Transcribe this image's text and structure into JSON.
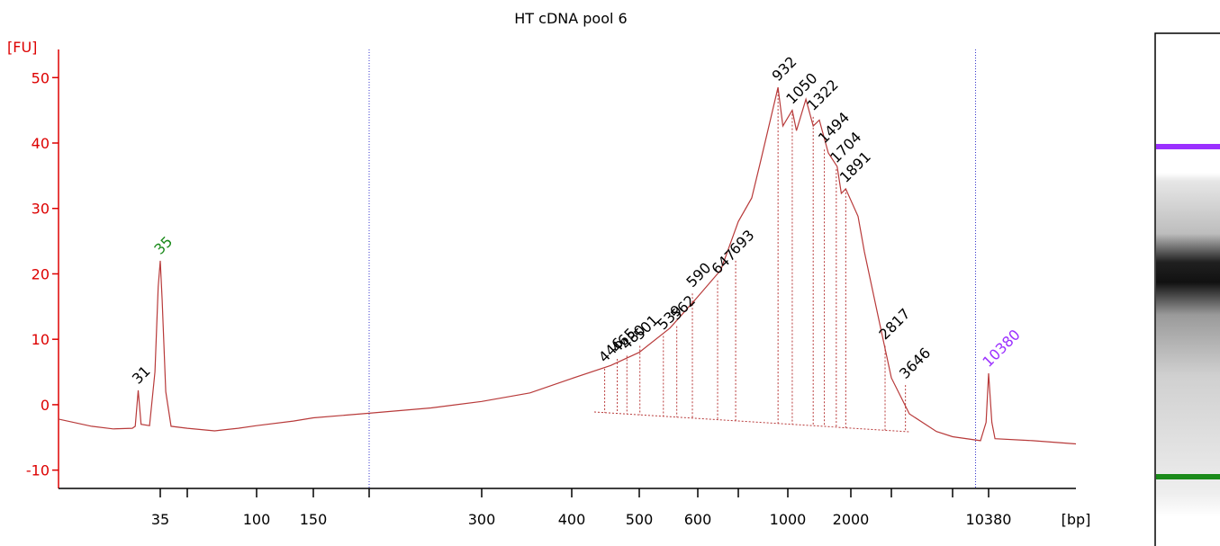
{
  "chart_data": {
    "type": "line",
    "title": "HT cDNA pool 6",
    "x_label": "[bp]",
    "y_label": "[FU]",
    "color": "#b83a3a",
    "axis_color": "#dd0000",
    "xlim": [
      20,
      17000
    ],
    "ylim": [
      -12.8,
      54.3
    ],
    "yticks": [
      -10,
      0,
      10,
      20,
      30,
      40,
      50
    ],
    "xticks": [
      35,
      {
        "value": 43,
        "label": null
      },
      100,
      150,
      {
        "value": 200,
        "label": null
      },
      300,
      400,
      500,
      600,
      {
        "value": 700,
        "label": null
      },
      1000,
      2000,
      {
        "value": 3000,
        "label": null
      },
      {
        "value": 7000,
        "label": null
      },
      10380
    ],
    "region_lines": [
      200,
      9000
    ],
    "x": [
      20,
      24,
      27,
      30,
      30.5,
      31,
      31.5,
      33,
      34,
      34.6,
      35,
      35.5,
      36.5,
      38,
      43,
      60,
      80,
      100,
      130,
      150,
      200,
      250,
      300,
      350,
      400,
      455,
      500,
      550,
      600,
      655,
      700,
      771,
      820,
      932,
      965,
      1050,
      1100,
      1220,
      1322,
      1414,
      1560,
      1720,
      1800,
      1891,
      2150,
      2290,
      2620,
      3000,
      3850,
      5600,
      7000,
      9500,
      10100,
      10380,
      10570,
      10760,
      13300,
      17000
    ],
    "y": [
      -2.2,
      -3.3,
      -3.7,
      -3.6,
      -3.3,
      2.2,
      -3.0,
      -3.2,
      5,
      18,
      22,
      16,
      2,
      -3.3,
      -3.6,
      -4.0,
      -3.6,
      -3.2,
      -2.5,
      -2.0,
      -1.3,
      -0.5,
      0.5,
      1.8,
      4.0,
      6.0,
      8.0,
      11.7,
      16.5,
      20.6,
      28.0,
      31.6,
      37.0,
      48.5,
      42.6,
      45.0,
      41.9,
      46.7,
      42.6,
      43.5,
      38.5,
      36.4,
      32.3,
      33.0,
      28.8,
      23.4,
      13.7,
      4.1,
      -1.4,
      -4.1,
      -4.9,
      -5.5,
      -2.7,
      4.8,
      -2.7,
      -5.2,
      -5.5,
      -6.0
    ],
    "peak_labels": [
      {
        "x": 31,
        "y": 2.2,
        "color": "#000000"
      },
      {
        "x": 35,
        "y": 22,
        "color": "#1a8a1a"
      },
      {
        "x": 446,
        "y": 5.5,
        "color": "#000000"
      },
      {
        "x": 465,
        "y": 7,
        "color": "#000000"
      },
      {
        "x": 480,
        "y": 7.5,
        "color": "#000000"
      },
      {
        "x": 501,
        "y": 9,
        "color": "#000000"
      },
      {
        "x": 539,
        "y": 10.5,
        "color": "#000000"
      },
      {
        "x": 562,
        "y": 12,
        "color": "#000000"
      },
      {
        "x": 590,
        "y": 17,
        "color": "#000000"
      },
      {
        "x": 647,
        "y": 19,
        "color": "#000000"
      },
      {
        "x": 693,
        "y": 22,
        "color": "#000000"
      },
      {
        "x": 932,
        "y": 48.5,
        "color": "#000000"
      },
      {
        "x": 1050,
        "y": 45,
        "color": "#000000"
      },
      {
        "x": 1322,
        "y": 44,
        "color": "#000000"
      },
      {
        "x": 1494,
        "y": 39,
        "color": "#000000"
      },
      {
        "x": 1704,
        "y": 36,
        "color": "#000000"
      },
      {
        "x": 1891,
        "y": 33,
        "color": "#000000"
      },
      {
        "x": 2817,
        "y": 9,
        "color": "#000000"
      },
      {
        "x": 3646,
        "y": 3,
        "color": "#000000"
      },
      {
        "x": 10380,
        "y": 4.8,
        "color": "#9b30ff"
      }
    ]
  }
}
